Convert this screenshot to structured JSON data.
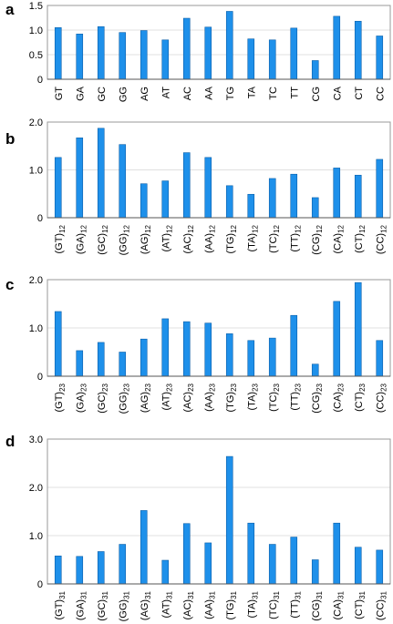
{
  "chart_data": [
    {
      "type": "bar",
      "panel": "a",
      "categories": [
        "GT",
        "GA",
        "GC",
        "GG",
        "AG",
        "AT",
        "AC",
        "AA",
        "TG",
        "TA",
        "TC",
        "TT",
        "CG",
        "CA",
        "CT",
        "CC"
      ],
      "subscript": "",
      "values": [
        1.05,
        0.92,
        1.07,
        0.95,
        0.99,
        0.8,
        1.24,
        1.06,
        1.38,
        0.82,
        0.8,
        1.04,
        0.38,
        1.28,
        1.18,
        0.88
      ],
      "ylim": [
        0,
        1.5
      ],
      "yticks": [
        "0",
        "0.5",
        "1.0",
        "1.5"
      ],
      "ytick_values": [
        0,
        0.5,
        1.0,
        1.5
      ],
      "grid": true
    },
    {
      "type": "bar",
      "panel": "b",
      "categories": [
        "GT",
        "GA",
        "GC",
        "GG",
        "AG",
        "AT",
        "AC",
        "AA",
        "TG",
        "TA",
        "TC",
        "TT",
        "CG",
        "CA",
        "CT",
        "CC"
      ],
      "subscript": "12",
      "values": [
        1.26,
        1.67,
        1.87,
        1.53,
        0.71,
        0.77,
        1.36,
        1.26,
        0.67,
        0.49,
        0.82,
        0.91,
        0.42,
        1.04,
        0.89,
        1.22
      ],
      "ylim": [
        0,
        2.0
      ],
      "yticks": [
        "0",
        "1.0",
        "2.0"
      ],
      "ytick_values": [
        0,
        1.0,
        2.0
      ],
      "grid": true
    },
    {
      "type": "bar",
      "panel": "c",
      "categories": [
        "GT",
        "GA",
        "GC",
        "GG",
        "AG",
        "AT",
        "AC",
        "AA",
        "TG",
        "TA",
        "TC",
        "TT",
        "CG",
        "CA",
        "CT",
        "CC"
      ],
      "subscript": "23",
      "values": [
        1.34,
        0.53,
        0.7,
        0.5,
        0.77,
        1.19,
        1.13,
        1.1,
        0.88,
        0.74,
        0.79,
        1.26,
        0.25,
        1.55,
        1.94,
        0.74
      ],
      "ylim": [
        0,
        2.0
      ],
      "yticks": [
        "0",
        "1.0",
        "2.0"
      ],
      "ytick_values": [
        0,
        1.0,
        2.0
      ],
      "grid": true
    },
    {
      "type": "bar",
      "panel": "d",
      "categories": [
        "GT",
        "GA",
        "GC",
        "GG",
        "AG",
        "AT",
        "AC",
        "AA",
        "TG",
        "TA",
        "TC",
        "TT",
        "CG",
        "CA",
        "CT",
        "CC"
      ],
      "subscript": "31",
      "values": [
        0.58,
        0.57,
        0.67,
        0.82,
        1.52,
        0.49,
        1.25,
        0.85,
        2.64,
        1.26,
        0.82,
        0.97,
        0.5,
        1.26,
        0.76,
        0.7
      ],
      "ylim": [
        0,
        3.0
      ],
      "yticks": [
        "0",
        "1.0",
        "2.0",
        "3.0"
      ],
      "ytick_values": [
        0,
        1.0,
        2.0,
        3.0
      ],
      "grid": true
    }
  ],
  "colors": {
    "bar_fill": "#1e90ea",
    "bar_stroke": "#0b5fa8",
    "frame": "#9a9a9a",
    "grid": "#d6d6d6"
  }
}
